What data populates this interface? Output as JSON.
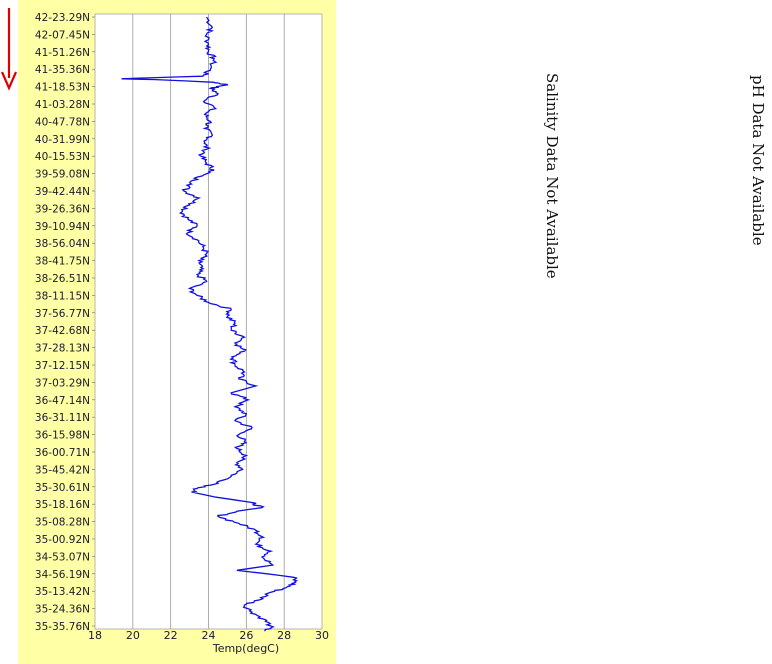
{
  "chart_data": {
    "type": "line",
    "orientation": "vertical-profile",
    "xlabel": "Temp(degC)",
    "x_ticks": [
      18,
      20,
      22,
      24,
      26,
      28,
      30
    ],
    "xlim": [
      18,
      30
    ],
    "grid": true,
    "y_tick_labels": [
      "42-23.29N",
      "42-07.45N",
      "41-51.26N",
      "41-35.36N",
      "41-18.53N",
      "41-03.28N",
      "40-47.78N",
      "40-31.99N",
      "40-15.53N",
      "39-59.08N",
      "39-42.44N",
      "39-26.36N",
      "39-10.94N",
      "38-56.04N",
      "38-41.75N",
      "38-26.51N",
      "38-11.15N",
      "37-56.77N",
      "37-42.68N",
      "37-28.13N",
      "37-12.15N",
      "37-03.29N",
      "36-47.14N",
      "36-31.11N",
      "36-15.98N",
      "36-00.71N",
      "35-45.42N",
      "35-30.61N",
      "35-18.16N",
      "35-08.28N",
      "35-00.92N",
      "34-53.07N",
      "34-56.19N",
      "35-13.42N",
      "35-24.36N",
      "35-35.76N"
    ],
    "series": [
      {
        "color": "#1010e0",
        "profile": [
          [
            0,
            23.9
          ],
          [
            0.6,
            24.2
          ],
          [
            1,
            23.9
          ],
          [
            1.6,
            24.0
          ],
          [
            2,
            24.0
          ],
          [
            2.4,
            24.3
          ],
          [
            3,
            24.1
          ],
          [
            3.4,
            23.7
          ],
          [
            3.5,
            20.8
          ],
          [
            3.55,
            19.4
          ],
          [
            3.6,
            21.2
          ],
          [
            3.75,
            24.3
          ],
          [
            3.9,
            25.0
          ],
          [
            4.1,
            24.1
          ],
          [
            4.4,
            24.5
          ],
          [
            4.8,
            23.8
          ],
          [
            5.2,
            24.3
          ],
          [
            5.6,
            23.8
          ],
          [
            6,
            24.1
          ],
          [
            6.4,
            23.8
          ],
          [
            6.8,
            24.2
          ],
          [
            7.2,
            23.8
          ],
          [
            7.6,
            23.9
          ],
          [
            8,
            23.6
          ],
          [
            8.4,
            23.9
          ],
          [
            8.8,
            24.3
          ],
          [
            9.2,
            23.4
          ],
          [
            9.6,
            23.1
          ],
          [
            10,
            22.7
          ],
          [
            10.4,
            23.5
          ],
          [
            10.8,
            23.0
          ],
          [
            11.2,
            22.6
          ],
          [
            11.6,
            22.9
          ],
          [
            12,
            23.4
          ],
          [
            12.4,
            22.9
          ],
          [
            12.8,
            23.4
          ],
          [
            13.2,
            23.7
          ],
          [
            13.6,
            23.9
          ],
          [
            14,
            23.5
          ],
          [
            14.4,
            23.6
          ],
          [
            14.8,
            23.4
          ],
          [
            15.2,
            23.9
          ],
          [
            15.6,
            23.0
          ],
          [
            16,
            23.4
          ],
          [
            16.4,
            24.0
          ],
          [
            16.8,
            25.2
          ],
          [
            17.2,
            25.0
          ],
          [
            17.6,
            25.4
          ],
          [
            18,
            25.2
          ],
          [
            18.4,
            25.9
          ],
          [
            18.8,
            25.5
          ],
          [
            19.2,
            25.9
          ],
          [
            19.6,
            25.3
          ],
          [
            20,
            25.4
          ],
          [
            20.4,
            25.9
          ],
          [
            20.8,
            25.6
          ],
          [
            21.2,
            26.5
          ],
          [
            21.6,
            25.2
          ],
          [
            22,
            26.1
          ],
          [
            22.4,
            25.4
          ],
          [
            22.8,
            26.0
          ],
          [
            23.2,
            25.4
          ],
          [
            23.6,
            26.3
          ],
          [
            24,
            25.6
          ],
          [
            24.4,
            25.9
          ],
          [
            24.8,
            25.5
          ],
          [
            25.2,
            26.0
          ],
          [
            25.6,
            25.5
          ],
          [
            26,
            25.8
          ],
          [
            26.4,
            25.2
          ],
          [
            26.8,
            24.5
          ],
          [
            27.1,
            23.4
          ],
          [
            27.3,
            23.1
          ],
          [
            27.6,
            24.4
          ],
          [
            27.9,
            26.3
          ],
          [
            28.2,
            26.8
          ],
          [
            28.4,
            25.5
          ],
          [
            28.7,
            24.5
          ],
          [
            29.1,
            25.6
          ],
          [
            29.5,
            26.5
          ],
          [
            29.9,
            26.9
          ],
          [
            30.3,
            26.5
          ],
          [
            30.7,
            27.3
          ],
          [
            31.1,
            26.9
          ],
          [
            31.5,
            27.4
          ],
          [
            31.8,
            25.5
          ],
          [
            32,
            27.1
          ],
          [
            32.2,
            28.5
          ],
          [
            32.5,
            28.6
          ],
          [
            32.8,
            28.1
          ],
          [
            33.1,
            27.2
          ],
          [
            33.5,
            26.7
          ],
          [
            33.8,
            25.9
          ],
          [
            34.2,
            26.3
          ],
          [
            34.6,
            26.9
          ],
          [
            35,
            27.3
          ],
          [
            35.3,
            27.0
          ]
        ]
      }
    ]
  },
  "notes": {
    "salinity": "Salinity Data Not Available",
    "ph": "pH Data Not Available"
  },
  "colors": {
    "panel": "#ffffa6",
    "grid": "#9a9a9a",
    "line": "#1010e0",
    "arrow": "#e00000",
    "text": "#1a1a2e"
  }
}
